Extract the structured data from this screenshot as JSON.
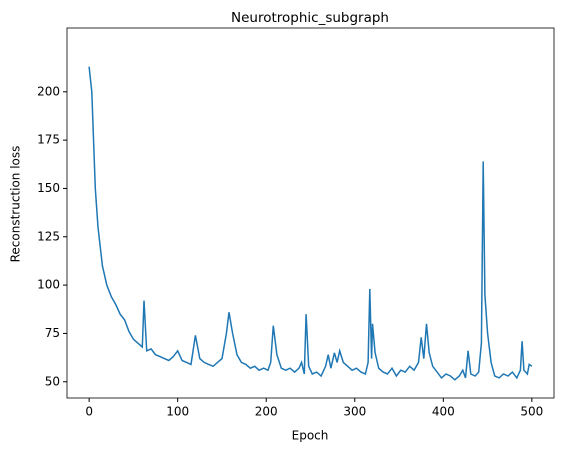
{
  "chart_data": {
    "type": "line",
    "title": "Neurotrophic_subgraph",
    "x_label": "Epoch",
    "y_label": "Reconstruction loss",
    "x": [
      0,
      3,
      7,
      10,
      15,
      20,
      25,
      30,
      35,
      40,
      45,
      50,
      55,
      60,
      62,
      65,
      70,
      75,
      80,
      85,
      90,
      95,
      100,
      105,
      110,
      115,
      120,
      125,
      130,
      135,
      140,
      145,
      150,
      155,
      158,
      162,
      167,
      172,
      177,
      182,
      187,
      192,
      197,
      202,
      205,
      208,
      212,
      217,
      222,
      227,
      232,
      237,
      240,
      243,
      245,
      248,
      252,
      257,
      262,
      267,
      270,
      273,
      277,
      280,
      283,
      287,
      292,
      297,
      302,
      307,
      312,
      315,
      317,
      319,
      320,
      323,
      327,
      332,
      337,
      342,
      347,
      352,
      357,
      362,
      367,
      372,
      375,
      378,
      381,
      384,
      388,
      393,
      398,
      403,
      408,
      413,
      418,
      422,
      425,
      428,
      431,
      436,
      440,
      443,
      445,
      447,
      450,
      454,
      458,
      463,
      468,
      473,
      478,
      483,
      487,
      489,
      491,
      495,
      497,
      500
    ],
    "series": [
      {
        "name": "Reconstruction loss",
        "color": "#1f77b4",
        "values": [
          213,
          200,
          150,
          130,
          110,
          100,
          94,
          90,
          85,
          82,
          76,
          72,
          70,
          68,
          92,
          66,
          67,
          64,
          63,
          62,
          61,
          63,
          66,
          61,
          60,
          59,
          74,
          62,
          60,
          59,
          58,
          60,
          62,
          75,
          86,
          75,
          64,
          60,
          59,
          57,
          58,
          56,
          57,
          56,
          60,
          79,
          64,
          57,
          56,
          57,
          55,
          57,
          60,
          54,
          85,
          58,
          54,
          55,
          53,
          58,
          64,
          57,
          65,
          60,
          66,
          60,
          58,
          56,
          57,
          55,
          54,
          60,
          98,
          62,
          80,
          65,
          57,
          55,
          54,
          57,
          53,
          56,
          55,
          58,
          56,
          60,
          73,
          62,
          80,
          65,
          58,
          55,
          52,
          54,
          53,
          51,
          53,
          56,
          52,
          66,
          54,
          53,
          55,
          70,
          164,
          95,
          75,
          60,
          53,
          52,
          54,
          53,
          55,
          52,
          56,
          71,
          56,
          54,
          59,
          58
        ]
      }
    ],
    "xlim": [
      -25,
      525
    ],
    "ylim": [
      41.6,
      233
    ],
    "xticks": [
      0,
      100,
      200,
      300,
      400,
      500
    ],
    "yticks": [
      50,
      75,
      100,
      125,
      150,
      175,
      200
    ]
  }
}
